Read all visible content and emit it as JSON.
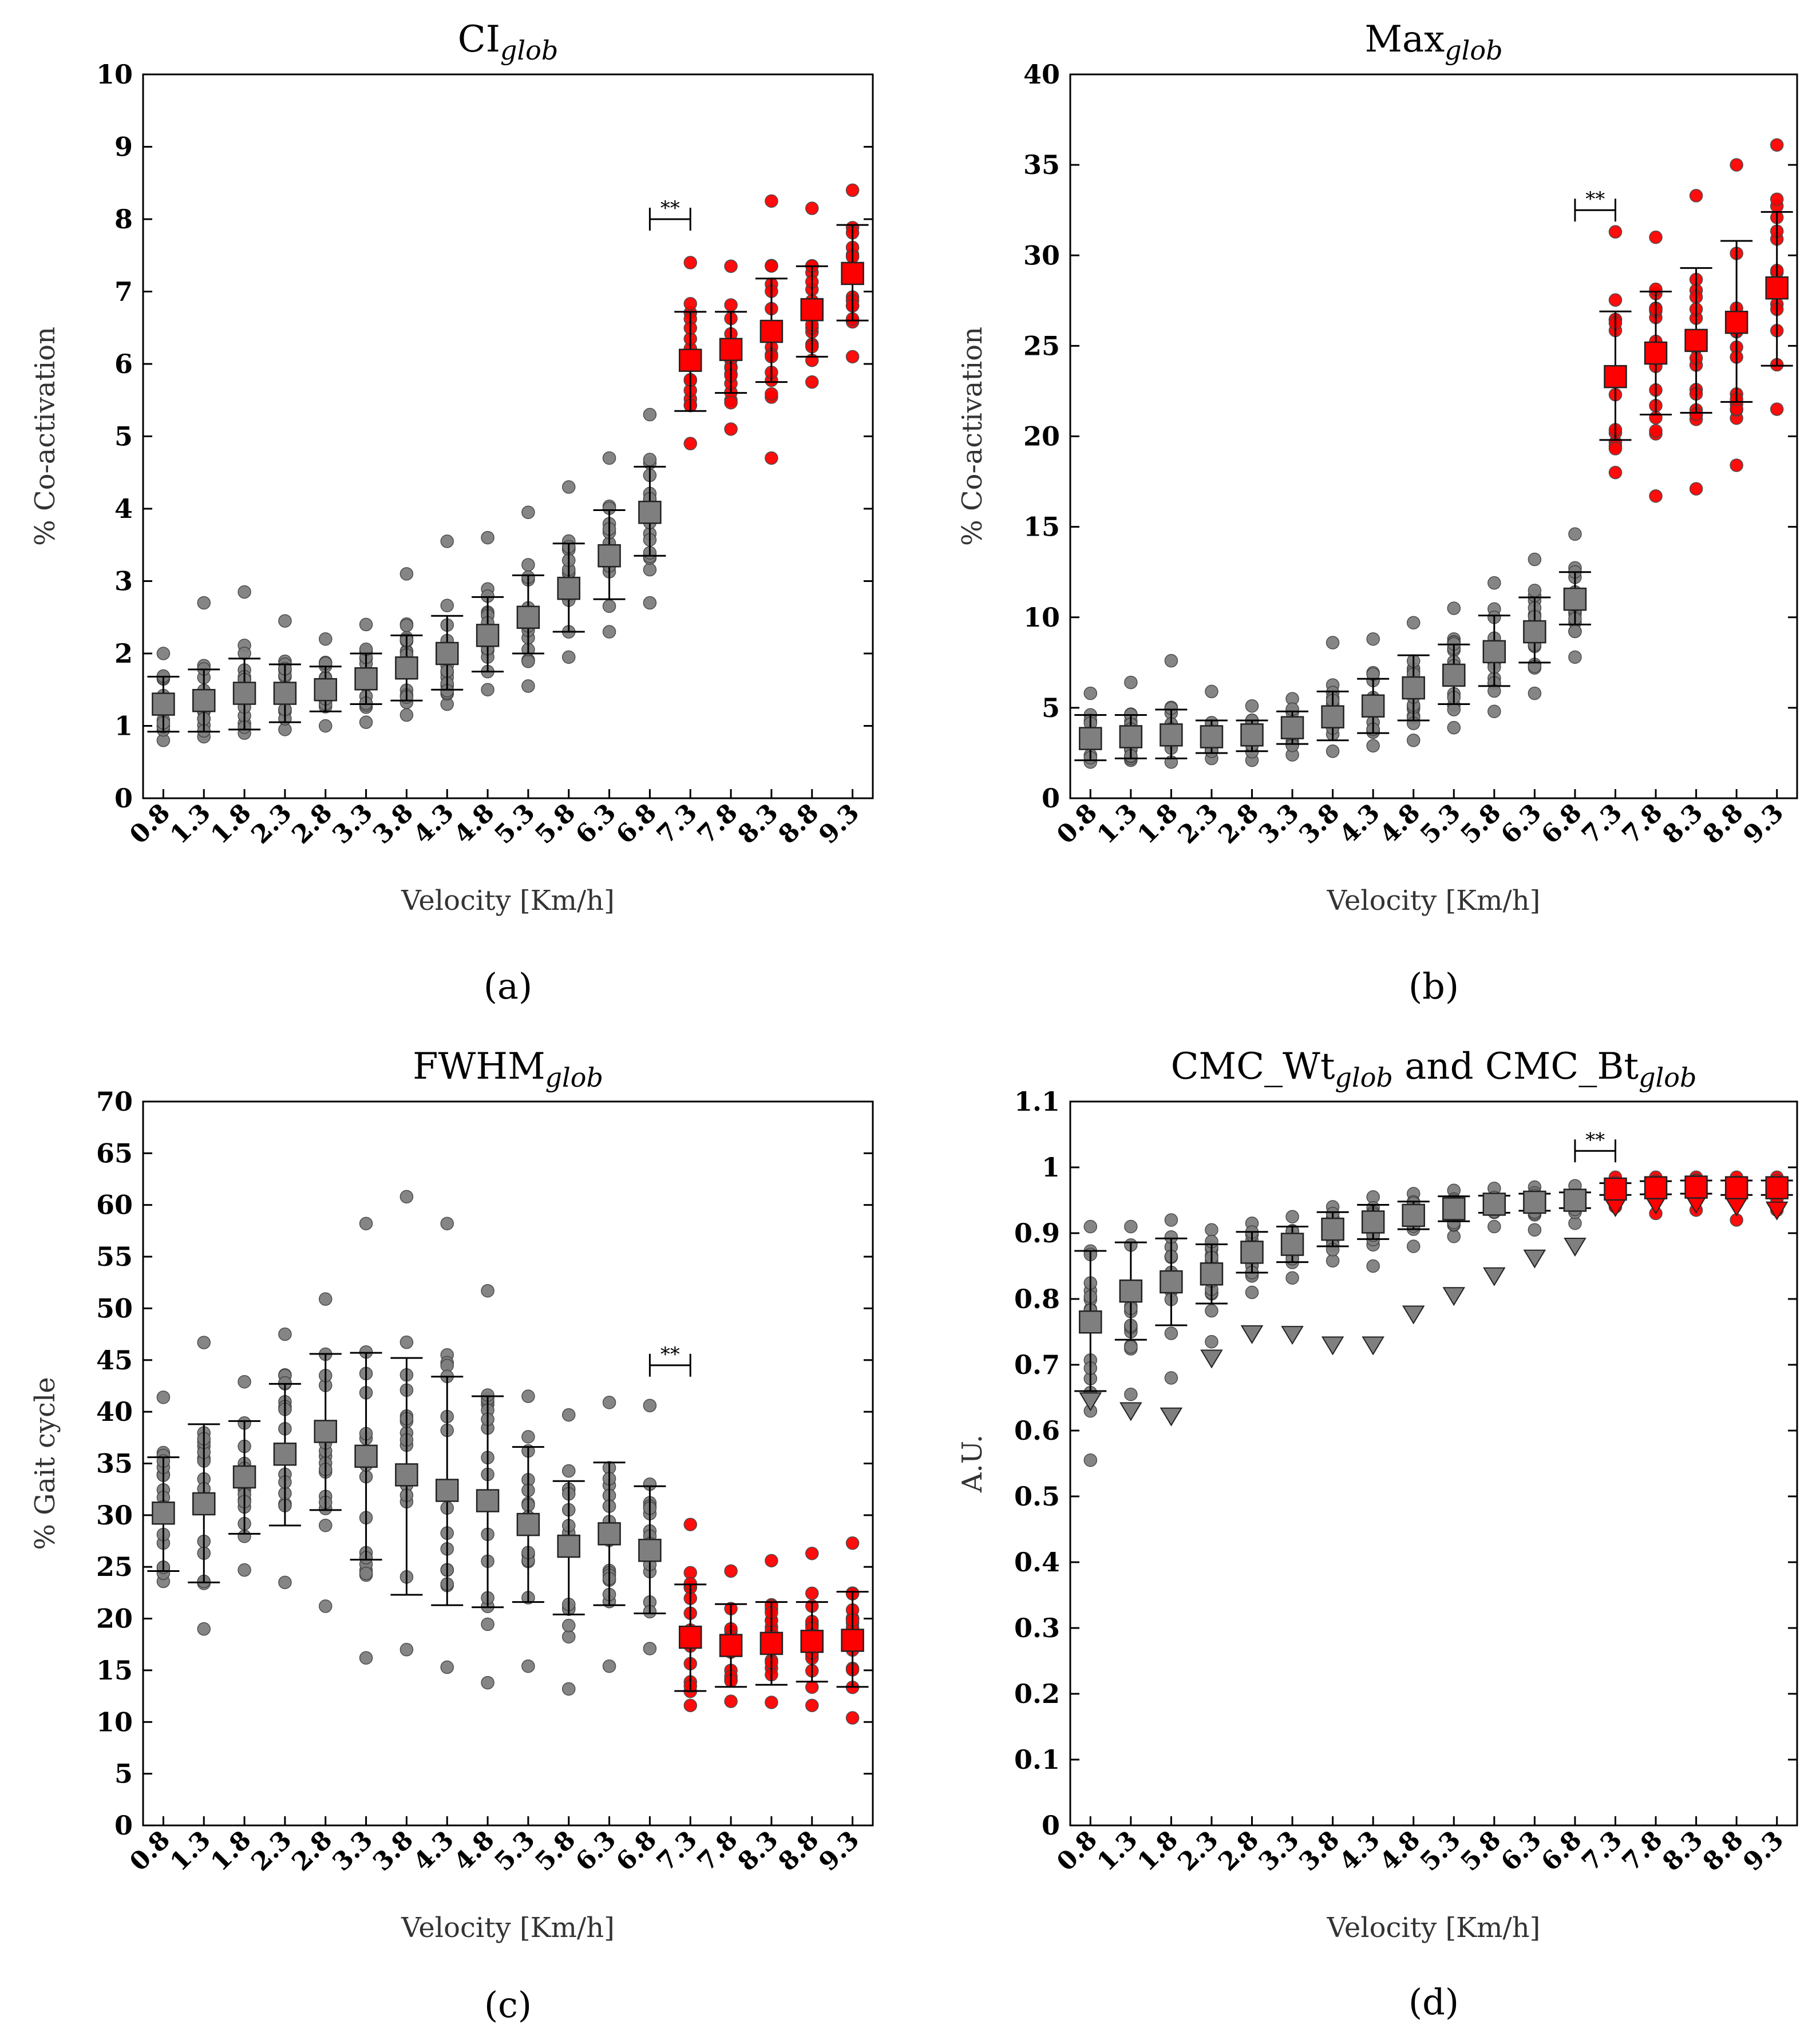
{
  "chart_data": [
    {
      "id": "a",
      "type": "scatter",
      "caption": "(a)",
      "title_main": "CI",
      "title_sub": "glob",
      "xlabel": "Velocity [Km/h]",
      "ylabel": "% Co-activation",
      "ylim": [
        0,
        10
      ],
      "yticks": [
        "0",
        "1",
        "2",
        "3",
        "4",
        "5",
        "6",
        "7",
        "8",
        "9",
        "10"
      ],
      "categories": [
        "0.8",
        "1.3",
        "1.8",
        "2.3",
        "2.8",
        "3.3",
        "3.8",
        "4.3",
        "4.8",
        "5.3",
        "5.8",
        "6.3",
        "6.8",
        "7.3",
        "7.8",
        "8.3",
        "8.8",
        "9.3"
      ],
      "split_index": 13,
      "significance": {
        "label": "**",
        "from": "6.8",
        "to": "7.3",
        "y": 8.0
      },
      "series": [
        {
          "name": "mean",
          "values": [
            1.3,
            1.35,
            1.45,
            1.45,
            1.5,
            1.65,
            1.8,
            2.0,
            2.25,
            2.5,
            2.9,
            3.35,
            3.95,
            6.05,
            6.2,
            6.45,
            6.75,
            7.25
          ]
        },
        {
          "name": "sd_low",
          "values": [
            0.92,
            0.92,
            0.95,
            1.05,
            1.2,
            1.3,
            1.35,
            1.5,
            1.75,
            2.0,
            2.3,
            2.75,
            3.35,
            5.35,
            5.6,
            5.75,
            6.1,
            6.6
          ]
        },
        {
          "name": "sd_high",
          "values": [
            1.68,
            1.78,
            1.93,
            1.85,
            1.82,
            2.0,
            2.25,
            2.52,
            2.78,
            3.08,
            3.52,
            3.98,
            4.58,
            6.72,
            6.72,
            7.18,
            7.35,
            7.92
          ]
        },
        {
          "name": "subjects_min",
          "values": [
            0.8,
            0.85,
            0.9,
            0.95,
            1.0,
            1.05,
            1.15,
            1.3,
            1.5,
            1.55,
            1.95,
            2.3,
            2.7,
            4.9,
            5.1,
            4.7,
            5.75,
            6.1
          ]
        },
        {
          "name": "subjects_max",
          "values": [
            2.0,
            2.7,
            2.85,
            2.45,
            2.2,
            2.4,
            3.1,
            3.55,
            3.6,
            3.95,
            4.3,
            4.7,
            5.3,
            7.4,
            7.35,
            8.25,
            8.15,
            8.4
          ]
        }
      ]
    },
    {
      "id": "b",
      "type": "scatter",
      "caption": "(b)",
      "title_main": "Max",
      "title_sub": "glob",
      "xlabel": "Velocity [Km/h]",
      "ylabel": "% Co-activation",
      "ylim": [
        0,
        40
      ],
      "yticks": [
        "0",
        "5",
        "10",
        "15",
        "20",
        "25",
        "30",
        "35",
        "40"
      ],
      "categories": [
        "0.8",
        "1.3",
        "1.8",
        "2.3",
        "2.8",
        "3.3",
        "3.8",
        "4.3",
        "4.8",
        "5.3",
        "5.8",
        "6.3",
        "6.8",
        "7.3",
        "7.8",
        "8.3",
        "8.8",
        "9.3"
      ],
      "split_index": 13,
      "significance": {
        "label": "**",
        "from": "6.8",
        "to": "7.3",
        "y": 32.5
      },
      "series": [
        {
          "name": "mean",
          "values": [
            3.3,
            3.4,
            3.5,
            3.4,
            3.5,
            3.9,
            4.5,
            5.1,
            6.1,
            6.8,
            8.1,
            9.2,
            11.0,
            23.3,
            24.6,
            25.3,
            26.3,
            28.2
          ]
        },
        {
          "name": "sd_low",
          "values": [
            2.1,
            2.2,
            2.2,
            2.5,
            2.6,
            3.0,
            3.2,
            3.6,
            4.3,
            5.2,
            6.2,
            7.5,
            9.6,
            19.8,
            21.2,
            21.3,
            21.9,
            23.9
          ]
        },
        {
          "name": "sd_high",
          "values": [
            4.6,
            4.6,
            4.9,
            4.3,
            4.3,
            4.8,
            5.9,
            6.6,
            7.9,
            8.5,
            10.1,
            11.1,
            12.5,
            26.9,
            28.0,
            29.3,
            30.8,
            32.4
          ]
        },
        {
          "name": "subjects_min",
          "values": [
            2.0,
            2.1,
            2.0,
            2.2,
            2.1,
            2.4,
            2.6,
            2.9,
            3.2,
            3.9,
            4.8,
            5.8,
            7.8,
            18.0,
            16.7,
            17.1,
            18.4,
            21.5
          ]
        },
        {
          "name": "subjects_max",
          "values": [
            5.8,
            6.4,
            7.6,
            5.9,
            5.1,
            5.5,
            8.6,
            8.8,
            9.7,
            10.5,
            11.9,
            13.2,
            14.6,
            31.3,
            31.0,
            33.3,
            35.0,
            36.1
          ]
        }
      ]
    },
    {
      "id": "c",
      "type": "scatter",
      "caption": "(c)",
      "title_main": "FWHM",
      "title_sub": "glob",
      "xlabel": "Velocity [Km/h]",
      "ylabel": "% Gait cycle",
      "ylim": [
        0,
        70
      ],
      "yticks": [
        "0",
        "5",
        "10",
        "15",
        "20",
        "25",
        "30",
        "35",
        "40",
        "45",
        "50",
        "55",
        "60",
        "65",
        "70"
      ],
      "categories": [
        "0.8",
        "1.3",
        "1.8",
        "2.3",
        "2.8",
        "3.3",
        "3.8",
        "4.3",
        "4.8",
        "5.3",
        "5.8",
        "6.3",
        "6.8",
        "7.3",
        "7.8",
        "8.3",
        "8.8",
        "9.3"
      ],
      "split_index": 13,
      "significance": {
        "label": "**",
        "from": "6.8",
        "to": "7.3",
        "y": 44.5
      },
      "series": [
        {
          "name": "mean",
          "values": [
            30.2,
            31.1,
            33.7,
            35.9,
            38.1,
            35.7,
            33.9,
            32.4,
            31.4,
            29.1,
            27.0,
            28.2,
            26.6,
            18.2,
            17.4,
            17.6,
            17.8,
            17.9
          ]
        },
        {
          "name": "sd_low",
          "values": [
            24.6,
            23.5,
            28.2,
            29.0,
            30.5,
            25.7,
            22.3,
            21.3,
            21.1,
            21.6,
            20.4,
            21.3,
            20.5,
            13.0,
            13.4,
            13.6,
            13.9,
            13.4
          ]
        },
        {
          "name": "sd_high",
          "values": [
            35.6,
            38.8,
            39.1,
            42.7,
            45.6,
            45.7,
            45.2,
            43.4,
            41.5,
            36.6,
            33.3,
            35.1,
            32.8,
            23.3,
            21.4,
            21.6,
            21.6,
            22.6
          ]
        },
        {
          "name": "subjects_min",
          "values": [
            23.6,
            19.0,
            24.7,
            23.5,
            21.2,
            16.2,
            17.0,
            15.3,
            13.8,
            15.4,
            13.2,
            15.4,
            17.1,
            11.6,
            12.0,
            11.9,
            11.6,
            10.4
          ]
        },
        {
          "name": "subjects_max",
          "values": [
            41.4,
            46.7,
            42.9,
            47.5,
            50.9,
            58.2,
            60.8,
            58.2,
            51.7,
            41.5,
            39.7,
            40.9,
            40.6,
            29.1,
            24.6,
            25.6,
            26.3,
            27.3
          ]
        }
      ]
    },
    {
      "id": "d",
      "type": "scatter",
      "caption": "(d)",
      "title_main": "CMC_Wt",
      "title_sub": "glob",
      "title_and": " and ",
      "title_main2": "CMC_Bt",
      "title_sub2": "glob",
      "xlabel": "Velocity [Km/h]",
      "ylabel": "A.U.",
      "ylim": [
        0,
        1.1
      ],
      "yticks": [
        "0",
        "0.1",
        "0.2",
        "0.3",
        "0.4",
        "0.5",
        "0.6",
        "0.7",
        "0.8",
        "0.9",
        "1",
        "1.1"
      ],
      "categories": [
        "0.8",
        "1.3",
        "1.8",
        "2.3",
        "2.8",
        "3.3",
        "3.8",
        "4.3",
        "4.8",
        "5.3",
        "5.8",
        "6.3",
        "6.8",
        "7.3",
        "7.8",
        "8.3",
        "8.8",
        "9.3"
      ],
      "split_index": 13,
      "significance": {
        "label": "**",
        "from": "6.8",
        "to": "7.3",
        "y": 1.025
      },
      "series": [
        {
          "name": "CMC_Wt mean",
          "values": [
            0.765,
            0.812,
            0.826,
            0.838,
            0.871,
            0.883,
            0.906,
            0.917,
            0.927,
            0.937,
            0.944,
            0.947,
            0.95,
            0.967,
            0.969,
            0.97,
            0.969,
            0.969
          ]
        },
        {
          "name": "CMC_Wt sd_low",
          "values": [
            0.66,
            0.738,
            0.76,
            0.793,
            0.84,
            0.856,
            0.88,
            0.891,
            0.906,
            0.918,
            0.931,
            0.934,
            0.938,
            0.958,
            0.959,
            0.96,
            0.958,
            0.958
          ]
        },
        {
          "name": "CMC_Wt sd_high",
          "values": [
            0.873,
            0.886,
            0.892,
            0.883,
            0.902,
            0.91,
            0.932,
            0.943,
            0.948,
            0.956,
            0.957,
            0.96,
            0.962,
            0.976,
            0.979,
            0.98,
            0.98,
            0.98
          ]
        },
        {
          "name": "subjects_min",
          "values": [
            0.555,
            0.655,
            0.68,
            0.735,
            0.81,
            0.832,
            0.858,
            0.85,
            0.88,
            0.895,
            0.91,
            0.905,
            0.915,
            0.94,
            0.93,
            0.935,
            0.92,
            0.935
          ]
        },
        {
          "name": "subjects_max",
          "values": [
            0.91,
            0.91,
            0.92,
            0.905,
            0.915,
            0.925,
            0.94,
            0.955,
            0.96,
            0.965,
            0.968,
            0.97,
            0.972,
            0.985,
            0.985,
            0.985,
            0.985,
            0.985
          ]
        },
        {
          "name": "CMC_Bt",
          "values": [
            0.645,
            0.63,
            0.622,
            0.71,
            0.747,
            0.746,
            0.73,
            0.73,
            0.777,
            0.805,
            0.835,
            0.862,
            0.88,
            0.94,
            0.944,
            0.945,
            0.941,
            0.935
          ]
        }
      ]
    }
  ],
  "colors": {
    "low": "#7f7f7f",
    "high": "#ff0000",
    "edge": "#333333",
    "axis": "#000000"
  }
}
